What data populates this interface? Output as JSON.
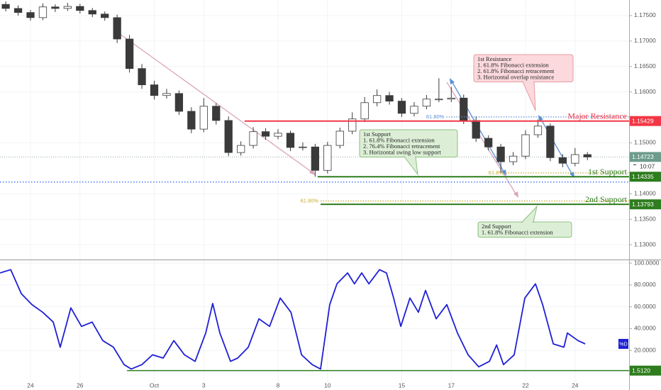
{
  "chart_data": [
    {
      "type": "candlestick",
      "xlim": [
        -1.232,
        24.183
      ],
      "ylim": [
        1.12723,
        1.17806
      ],
      "yticks": [
        {
          "value": 1.175,
          "label": "1.17500"
        },
        {
          "value": 1.17,
          "label": "1.17000"
        },
        {
          "value": 1.165,
          "label": "1.16500"
        },
        {
          "value": 1.16,
          "label": "1.16000"
        },
        {
          "value": 1.15,
          "label": "1.15000"
        },
        {
          "value": 1.14,
          "label": "1.14000"
        },
        {
          "value": 1.135,
          "label": "1.13500"
        },
        {
          "value": 1.13,
          "label": "1.13000"
        }
      ],
      "up_color": "#ffffff",
      "down_color": "#3a3a3a",
      "wick_color": "#3a3a3a",
      "candles": {
        "x": [
          -1,
          -0.5,
          0,
          0.5,
          1,
          1.5,
          2,
          2.5,
          3,
          3.5,
          4,
          4.5,
          5,
          5.5,
          6,
          6.5,
          7,
          7.5,
          8,
          8.5,
          9,
          9.5,
          10,
          10.5,
          11,
          11.5,
          12,
          12.5,
          13,
          13.5,
          14,
          14.5,
          15,
          15.5,
          16,
          16.5,
          17,
          17.5,
          18,
          18.5,
          19,
          19.5,
          20,
          20.5,
          21,
          21.5,
          22,
          22.5
        ],
        "open": [
          1.1772,
          1.1764,
          1.1756,
          1.1746,
          1.1767,
          1.1764,
          1.1768,
          1.176,
          1.1753,
          1.1746,
          1.1704,
          1.1646,
          1.1614,
          1.1593,
          1.1597,
          1.1562,
          1.1527,
          1.1572,
          1.1544,
          1.1481,
          1.1495,
          1.1522,
          1.1513,
          1.1519,
          1.1491,
          1.1492,
          1.1446,
          1.1495,
          1.1523,
          1.1547,
          1.1579,
          1.1593,
          1.1582,
          1.1558,
          1.1572,
          1.1586,
          1.1586,
          1.1588,
          1.1544,
          1.1509,
          1.1492,
          1.1463,
          1.1474,
          1.1516,
          1.1533,
          1.1471,
          1.146,
          1.1477
        ],
        "high": [
          1.1778,
          1.177,
          1.1761,
          1.1774,
          1.1772,
          1.1775,
          1.1773,
          1.1765,
          1.1758,
          1.1752,
          1.1712,
          1.1655,
          1.1622,
          1.1606,
          1.1603,
          1.157,
          1.1588,
          1.1578,
          1.1552,
          1.1503,
          1.1531,
          1.1529,
          1.1527,
          1.1524,
          1.1501,
          1.1498,
          1.1502,
          1.153,
          1.156,
          1.159,
          1.1605,
          1.16,
          1.1588,
          1.158,
          1.1594,
          1.1627,
          1.161,
          1.1595,
          1.1552,
          1.1515,
          1.1498,
          1.1482,
          1.1525,
          1.1546,
          1.1538,
          1.1478,
          1.149,
          1.1482
        ],
        "low": [
          1.1758,
          1.175,
          1.174,
          1.1741,
          1.1757,
          1.1759,
          1.1754,
          1.1747,
          1.174,
          1.1696,
          1.1638,
          1.1606,
          1.1585,
          1.1587,
          1.1555,
          1.1519,
          1.1521,
          1.1536,
          1.1474,
          1.1475,
          1.1489,
          1.1506,
          1.1507,
          1.1484,
          1.1485,
          1.14335,
          1.144,
          1.1489,
          1.1517,
          1.1541,
          1.1572,
          1.1575,
          1.1551,
          1.1552,
          1.1566,
          1.158,
          1.158,
          1.1537,
          1.1502,
          1.1485,
          1.144,
          1.1456,
          1.1468,
          1.151,
          1.1464,
          1.1452,
          1.1454,
          1.1466
        ],
        "close": [
          1.1764,
          1.1756,
          1.1746,
          1.1767,
          1.1764,
          1.1768,
          1.176,
          1.1753,
          1.1746,
          1.1704,
          1.1646,
          1.1614,
          1.1593,
          1.1597,
          1.1562,
          1.1527,
          1.1572,
          1.1544,
          1.1481,
          1.1495,
          1.1522,
          1.1513,
          1.1519,
          1.1491,
          1.1492,
          1.1446,
          1.1495,
          1.1523,
          1.1547,
          1.1579,
          1.1593,
          1.1582,
          1.1558,
          1.1572,
          1.1586,
          1.1586,
          1.1588,
          1.1544,
          1.1509,
          1.1492,
          1.1463,
          1.1474,
          1.1516,
          1.1533,
          1.1471,
          1.146,
          1.1477,
          1.14723
        ]
      },
      "levels": [
        {
          "name": "Major Resistance",
          "value": 1.15429,
          "start": 8.65,
          "color": "#f23645"
        },
        {
          "name": "1st Support",
          "value": 1.14335,
          "start": 11.6,
          "color": "#2e7d1e"
        },
        {
          "name": "2nd Support",
          "value": 1.13793,
          "start": 11.72,
          "color": "#2e7d1e"
        }
      ],
      "fibs": [
        {
          "label": "61.80%",
          "value": 1.1551,
          "start": 16.8,
          "color": "#5b8fd6"
        },
        {
          "label": "61.8%",
          "value": 1.1441,
          "start": 19.2,
          "color": "#c8a82a"
        },
        {
          "label": "61.80%",
          "value": 1.1386,
          "start": 11.72,
          "color": "#c8a82a"
        }
      ],
      "guides": [
        {
          "value": 1.1423,
          "color": "#2962ff"
        }
      ],
      "last": {
        "value": 1.14723,
        "timer": "10:07",
        "color": "#6e9c8c"
      },
      "callouts": [
        {
          "title": "1st Resistance",
          "lines": [
            "1. 61.8% Fibonacci extension",
            "2. 61.8% Fibonacci retracement",
            "3. Horizontal overlap resistance"
          ],
          "kind": "resistance"
        },
        {
          "title": "1st Support",
          "lines": [
            "1. 61.8% Fibonacci extension",
            "2. 76.4% Fibonacci retracement",
            "3. Horizontal swing low support"
          ],
          "kind": "support"
        },
        {
          "title": "2nd Support",
          "lines": [
            "1. 61.8% Fibonacci extension"
          ],
          "kind": "support"
        }
      ]
    },
    {
      "type": "line",
      "xlim": [
        -1.232,
        24.183
      ],
      "ylim": [
        -9.76,
        102
      ],
      "yticks": [
        {
          "value": 100,
          "label": "100.0000"
        },
        {
          "value": 80,
          "label": "80.0000"
        },
        {
          "value": 60,
          "label": "60.0000"
        },
        {
          "value": 40,
          "label": "40.0000"
        },
        {
          "value": 20,
          "label": "20.0000"
        }
      ],
      "xticks": [
        {
          "value": 0,
          "label": "24"
        },
        {
          "value": 2,
          "label": "26"
        },
        {
          "value": 5,
          "label": "Oct"
        },
        {
          "value": 7,
          "label": "3"
        },
        {
          "value": 10,
          "label": "8"
        },
        {
          "value": 12,
          "label": "10"
        },
        {
          "value": 15,
          "label": "15"
        },
        {
          "value": 17,
          "label": "17"
        },
        {
          "value": 20,
          "label": "22"
        },
        {
          "value": 22,
          "label": "24"
        }
      ],
      "series": [
        {
          "name": "%D",
          "color": "#1f1fd6",
          "x": [
            -1.23,
            -0.8,
            -0.37,
            0.06,
            0.49,
            0.92,
            1.2,
            1.63,
            2.06,
            2.49,
            2.92,
            3.35,
            3.78,
            4.07,
            4.5,
            4.93,
            5.36,
            5.79,
            6.22,
            6.65,
            7.08,
            7.36,
            7.65,
            8.08,
            8.37,
            8.8,
            9.23,
            9.66,
            10.09,
            10.52,
            10.95,
            11.38,
            11.72,
            12.09,
            12.38,
            12.81,
            13.09,
            13.38,
            13.67,
            14.1,
            14.38,
            14.67,
            14.96,
            15.33,
            15.67,
            15.96,
            16.39,
            16.82,
            17.25,
            17.68,
            18.11,
            18.54,
            18.83,
            19.11,
            19.54,
            19.97,
            20.4,
            20.69,
            21.12,
            21.55,
            21.69,
            22.12,
            22.41
          ],
          "values": [
            91,
            94,
            72,
            62,
            55,
            46,
            23,
            59,
            42,
            46,
            29,
            23,
            7,
            3,
            7,
            16,
            13,
            29,
            16,
            10,
            36,
            63,
            36,
            10,
            13,
            23,
            49,
            42,
            68,
            55,
            16,
            7,
            3,
            62,
            81,
            91,
            81,
            91,
            81,
            94,
            91,
            68,
            42,
            68,
            55,
            75,
            49,
            62,
            36,
            16,
            5,
            10,
            25,
            7,
            16,
            68,
            81,
            62,
            26,
            23,
            36,
            29,
            26
          ]
        }
      ],
      "level": {
        "value": 1.512,
        "label": "1.5120",
        "start": 3.9,
        "color": "#2e7d1e"
      }
    }
  ]
}
